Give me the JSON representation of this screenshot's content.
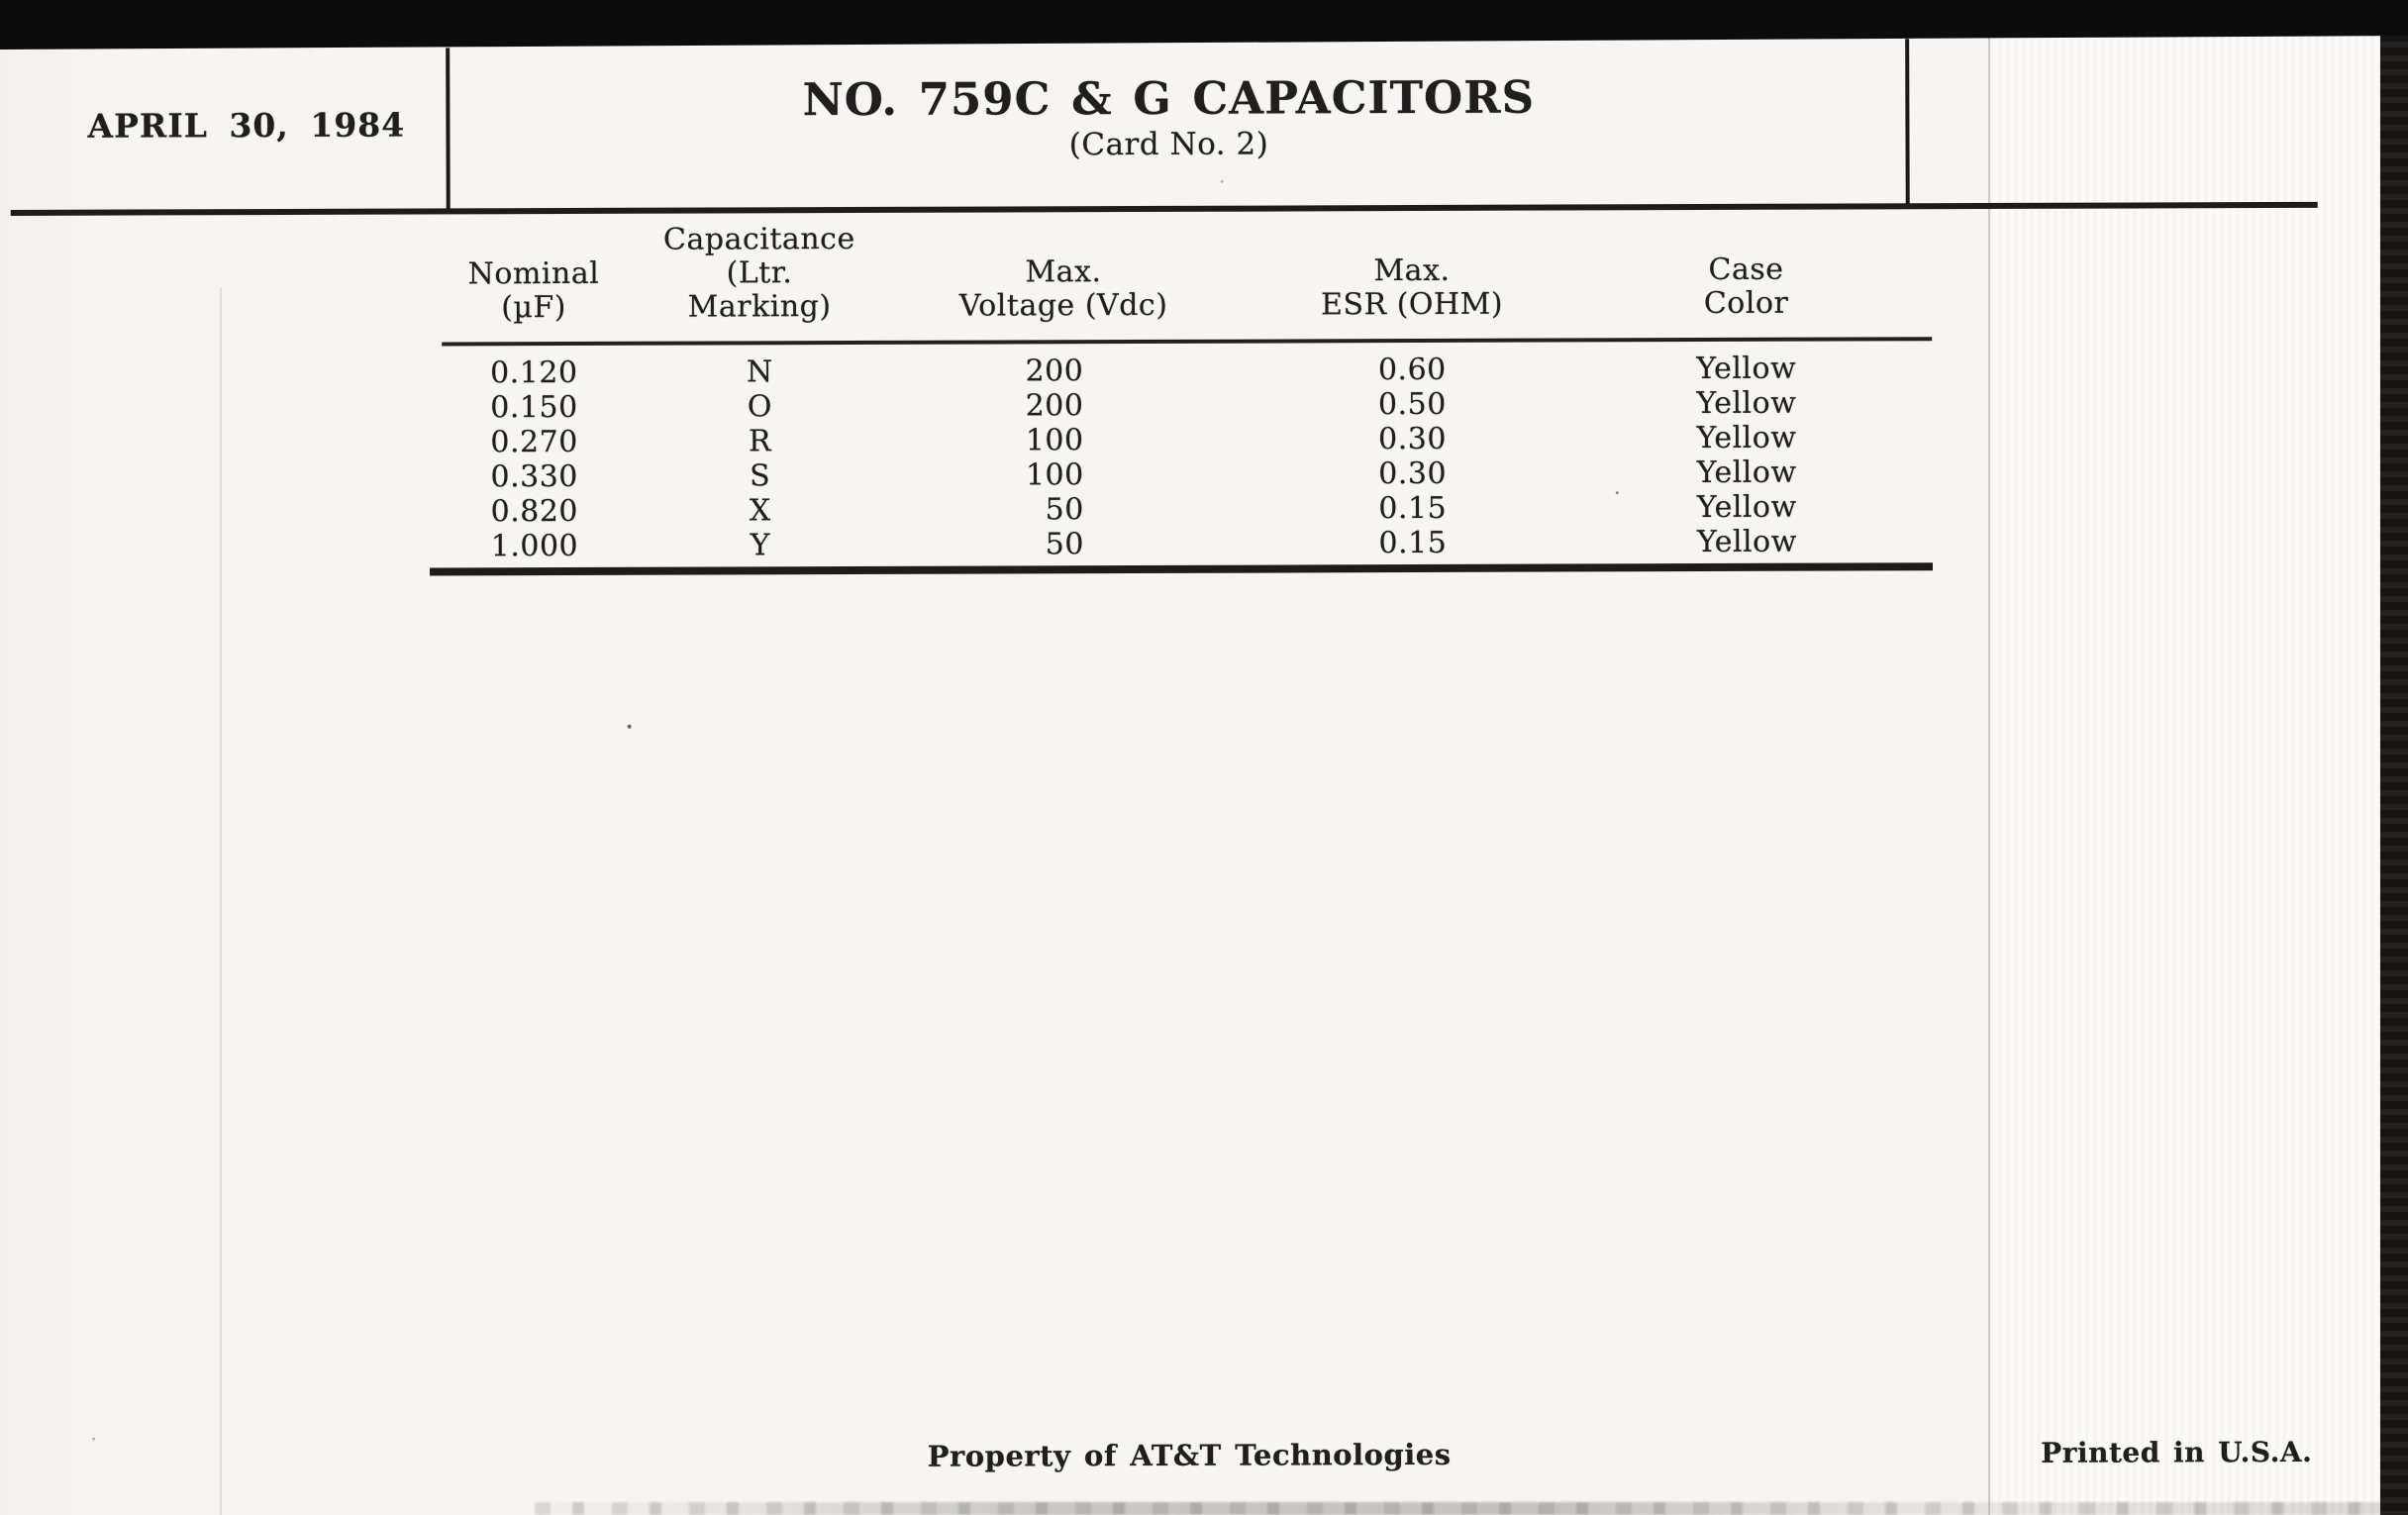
{
  "document": {
    "date": "APRIL 30, 1984",
    "title": "NO. 759C & G CAPACITORS",
    "subtitle": "(Card No. 2)",
    "footer": {
      "left": "Property of AT&T Technologies",
      "right": "Printed in U.S.A."
    }
  },
  "table": {
    "headers": [
      {
        "lines": [
          "Nominal",
          "(µF)"
        ]
      },
      {
        "lines": [
          "Capacitance",
          "(Ltr.",
          "Marking)"
        ]
      },
      {
        "lines": [
          "Max.",
          "Voltage (Vdc)"
        ]
      },
      {
        "lines": [
          "Max.",
          "ESR (OHM)"
        ]
      },
      {
        "lines": [
          "Case",
          "Color"
        ]
      }
    ],
    "rows": [
      [
        "0.120",
        "N",
        "200",
        "0.60",
        "Yellow"
      ],
      [
        "0.150",
        "O",
        "200",
        "0.50",
        "Yellow"
      ],
      [
        "0.270",
        "R",
        "100",
        "0.30",
        "Yellow"
      ],
      [
        "0.330",
        "S",
        "100",
        "0.30",
        "Yellow"
      ],
      [
        "0.820",
        "X",
        "50",
        "0.15",
        "Yellow"
      ],
      [
        "1.000",
        "Y",
        "50",
        "0.15",
        "Yellow"
      ]
    ]
  },
  "colors": {
    "paper": "#f6f5f2",
    "paper_right_strip": "#fbfaf8",
    "ink": "#201f1d",
    "scanner_black": "#0c0c0c"
  }
}
